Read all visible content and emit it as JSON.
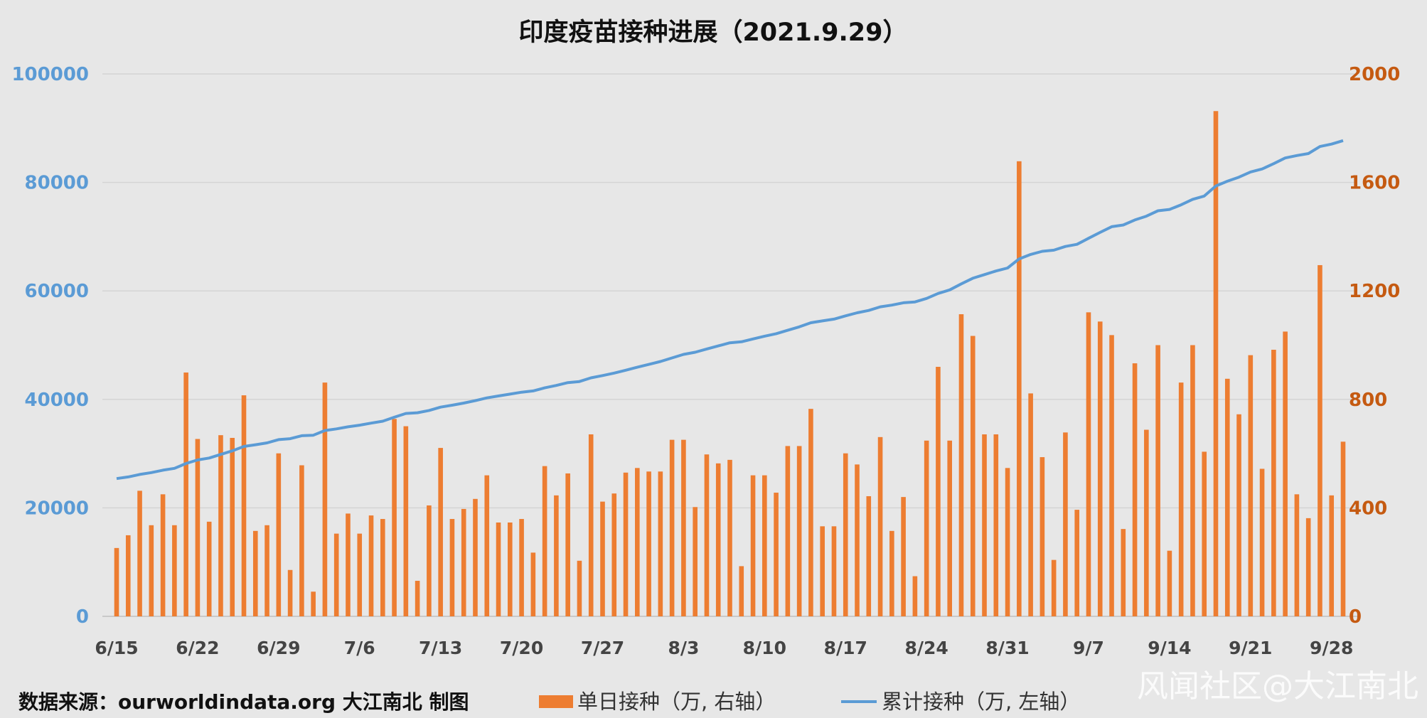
{
  "chart_data": {
    "type": "bar+line",
    "title": "印度疫苗接种进展（2021.9.29）",
    "source": "数据来源：ourworldindata.org 大江南北 制图",
    "watermark": "风闻社区@大江南北",
    "grid": true,
    "legend_position": "bottom",
    "x_tick_labels": [
      "6/15",
      "6/22",
      "6/29",
      "7/6",
      "7/13",
      "7/20",
      "7/27",
      "8/3",
      "8/10",
      "8/17",
      "8/24",
      "8/31",
      "9/7",
      "9/14",
      "9/21",
      "9/28"
    ],
    "dates": [
      "6/15",
      "6/16",
      "6/17",
      "6/18",
      "6/19",
      "6/20",
      "6/21",
      "6/22",
      "6/23",
      "6/24",
      "6/25",
      "6/26",
      "6/27",
      "6/28",
      "6/29",
      "6/30",
      "7/1",
      "7/2",
      "7/3",
      "7/4",
      "7/5",
      "7/6",
      "7/7",
      "7/8",
      "7/9",
      "7/10",
      "7/11",
      "7/12",
      "7/13",
      "7/14",
      "7/15",
      "7/16",
      "7/17",
      "7/18",
      "7/19",
      "7/20",
      "7/21",
      "7/22",
      "7/23",
      "7/24",
      "7/25",
      "7/26",
      "7/27",
      "7/28",
      "7/29",
      "7/30",
      "7/31",
      "8/1",
      "8/2",
      "8/3",
      "8/4",
      "8/5",
      "8/6",
      "8/7",
      "8/8",
      "8/9",
      "8/10",
      "8/11",
      "8/12",
      "8/13",
      "8/14",
      "8/15",
      "8/16",
      "8/17",
      "8/18",
      "8/19",
      "8/20",
      "8/21",
      "8/22",
      "8/23",
      "8/24",
      "8/25",
      "8/26",
      "8/27",
      "8/28",
      "8/29",
      "8/30",
      "8/31",
      "9/1",
      "9/2",
      "9/3",
      "9/4",
      "9/5",
      "9/6",
      "9/7",
      "9/8",
      "9/9",
      "9/10",
      "9/11",
      "9/12",
      "9/13",
      "9/14",
      "9/15",
      "9/16",
      "9/17",
      "9/18",
      "9/19",
      "9/20",
      "9/21",
      "9/22",
      "9/23",
      "9/24",
      "9/25",
      "9/26",
      "9/27",
      "9/28",
      "9/29"
    ],
    "y_left": {
      "range": [
        0,
        100000
      ],
      "ticks": [
        "0",
        "20000",
        "40000",
        "60000",
        "80000",
        "100000"
      ],
      "color": "#5b9bd5"
    },
    "y_right": {
      "range": [
        0,
        2000
      ],
      "ticks": [
        "0",
        "400",
        "800",
        "1200",
        "1600",
        "2000"
      ],
      "color": "#c55a11"
    },
    "series": [
      {
        "name": "单日接种（万, 右轴）",
        "type": "bar",
        "axis": "right",
        "color": "#ed7d31",
        "values": [
          252,
          299,
          463,
          336,
          450,
          336,
          899,
          654,
          349,
          668,
          658,
          815,
          315,
          336,
          601,
          171,
          557,
          91,
          862,
          305,
          379,
          305,
          372,
          359,
          728,
          701,
          131,
          409,
          621,
          359,
          396,
          433,
          520,
          346,
          346,
          359,
          235,
          554,
          446,
          527,
          205,
          671,
          423,
          453,
          530,
          547,
          534,
          534,
          651,
          651,
          403,
          597,
          564,
          577,
          185,
          520,
          520,
          456,
          628,
          628,
          765,
          332,
          332,
          601,
          560,
          443,
          661,
          315,
          440,
          148,
          648,
          920,
          648,
          1114,
          1034,
          671,
          671,
          547,
          1678,
          822,
          587,
          208,
          678,
          393,
          1121,
          1087,
          1037,
          322,
          933,
          688,
          1000,
          242,
          862,
          1000,
          607,
          1863,
          876,
          745,
          963,
          544,
          983,
          1050,
          450,
          362,
          1295,
          446,
          644
        ]
      },
      {
        "name": "累计接种（万, 左轴）",
        "type": "line",
        "axis": "left",
        "color": "#5b9bd5",
        "values": [
          25400,
          25699,
          26162,
          26498,
          26948,
          27284,
          28183,
          28837,
          29186,
          29854,
          30512,
          31327,
          31642,
          31978,
          32579,
          32750,
          33307,
          33398,
          34260,
          34565,
          34944,
          35249,
          35621,
          35980,
          36708,
          37409,
          37540,
          37949,
          38570,
          38929,
          39325,
          39758,
          40278,
          40624,
          40970,
          41329,
          41564,
          42118,
          42564,
          43091,
          43296,
          43967,
          44390,
          44843,
          45373,
          45920,
          46454,
          46988,
          47639,
          48290,
          48693,
          49290,
          49854,
          50431,
          50616,
          51136,
          51656,
          52112,
          52740,
          53368,
          54133,
          54465,
          54797,
          55398,
          55958,
          56401,
          57062,
          57377,
          57817,
          57965,
          58613,
          59533,
          60181,
          61295,
          62329,
          63000,
          63671,
          64218,
          65896,
          66718,
          67305,
          67513,
          68191,
          68584,
          69705,
          70792,
          71829,
          72151,
          73084,
          73772,
          74772,
          75014,
          75876,
          76876,
          77483,
          79346,
          80222,
          80967,
          81930,
          82474,
          83457,
          84507,
          84957,
          85319,
          86614,
          87060,
          87704
        ]
      }
    ]
  }
}
